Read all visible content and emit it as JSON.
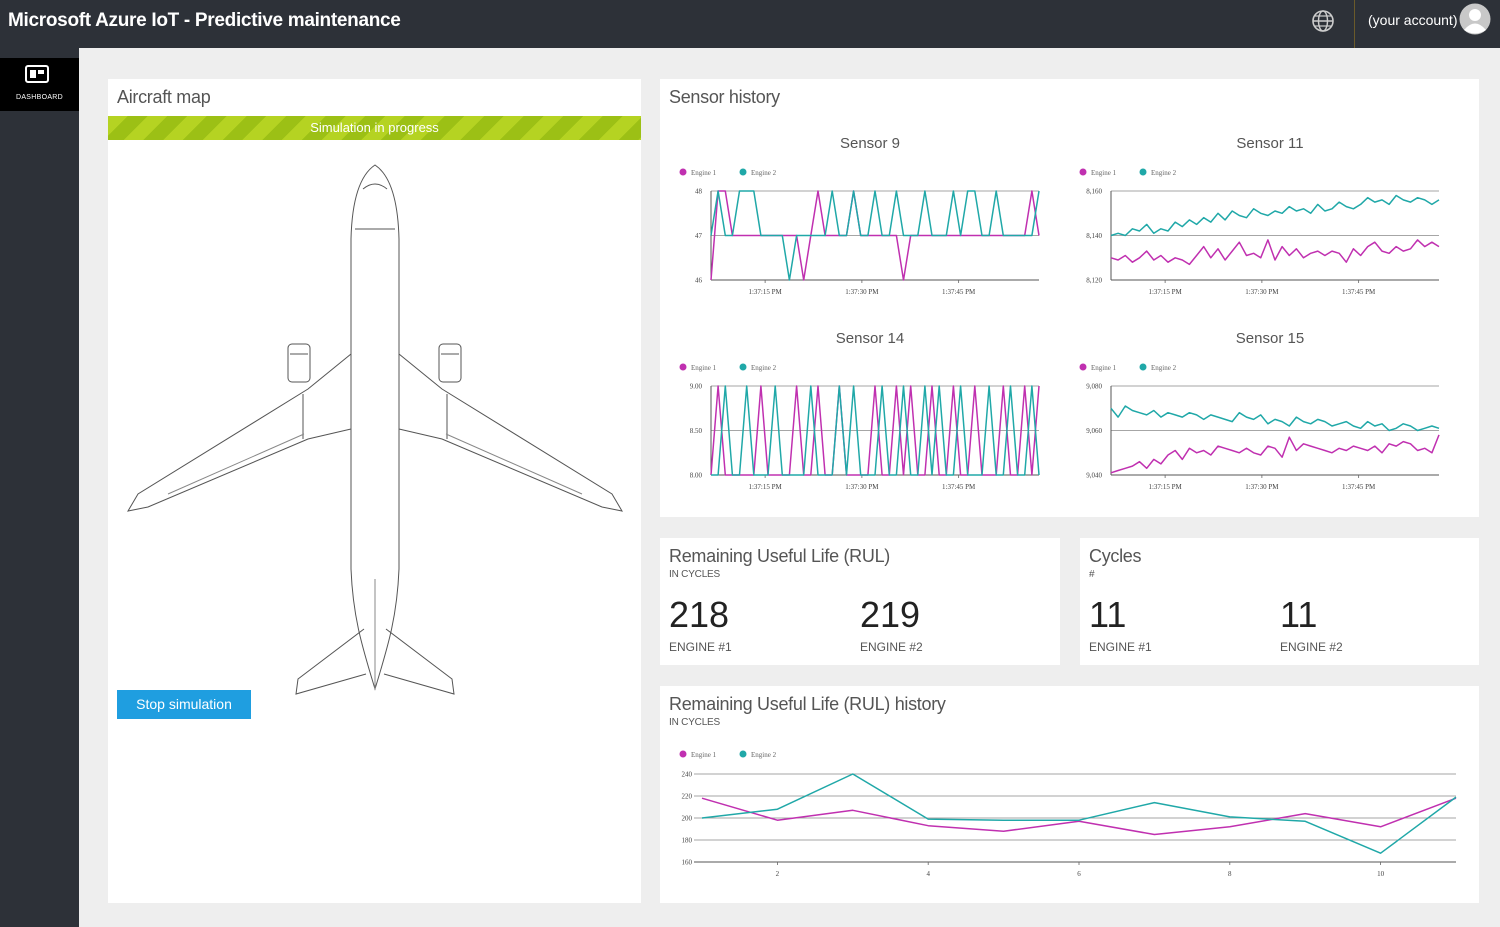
{
  "header": {
    "title": "Microsoft Azure IoT - Predictive maintenance",
    "account": "(your account)",
    "globe_icon": "globe-icon",
    "avatar_icon": "user-avatar-icon"
  },
  "nav": {
    "items": [
      {
        "label": "DASHBOARD",
        "icon": "dashboard-icon"
      }
    ]
  },
  "aircraft_map": {
    "title": "Aircraft map",
    "banner": "Simulation in progress",
    "stop_button": "Stop simulation"
  },
  "sensor_history": {
    "title": "Sensor history"
  },
  "rul": {
    "title": "Remaining Useful Life (RUL)",
    "caption": "IN CYCLES",
    "engines": [
      {
        "value": "218",
        "label": "ENGINE #1"
      },
      {
        "value": "219",
        "label": "ENGINE #2"
      }
    ]
  },
  "cycles": {
    "title": "Cycles",
    "caption": "#",
    "engines": [
      {
        "value": "11",
        "label": "ENGINE #1"
      },
      {
        "value": "11",
        "label": "ENGINE #2"
      }
    ]
  },
  "rul_history": {
    "title": "Remaining Useful Life (RUL) history",
    "caption": "IN CYCLES"
  },
  "colors": {
    "engine1": "#c030b0",
    "engine2": "#20a8a8",
    "accent": "#1f9ee0",
    "banner": "#b5d322"
  },
  "chart_data": [
    {
      "title": "Sensor 9",
      "type": "line",
      "ylim": [
        46,
        48
      ],
      "yticks": [
        "48",
        "47",
        "46"
      ],
      "xticks": [
        "1:37:15 PM",
        "1:37:30 PM",
        "1:37:45 PM"
      ],
      "series": [
        {
          "name": "Engine 1",
          "values": [
            46,
            48,
            48,
            47,
            47,
            47,
            47,
            47,
            47,
            47,
            47,
            47,
            47,
            46,
            47,
            48,
            47,
            47,
            47,
            47,
            48,
            47,
            47,
            47,
            47,
            47,
            47,
            46,
            47,
            47,
            47,
            47,
            47,
            47,
            47,
            47,
            47,
            47,
            47,
            47,
            47,
            47,
            47,
            47,
            47,
            48,
            47
          ]
        },
        {
          "name": "Engine 2",
          "values": [
            47,
            48,
            47,
            47,
            48,
            48,
            48,
            47,
            47,
            47,
            47,
            46,
            47,
            47,
            47,
            47,
            47,
            48,
            47,
            47,
            48,
            47,
            47,
            48,
            47,
            47,
            48,
            47,
            47,
            47,
            48,
            47,
            47,
            47,
            48,
            47,
            48,
            48,
            47,
            47,
            48,
            47,
            47,
            47,
            47,
            47,
            48
          ]
        }
      ]
    },
    {
      "title": "Sensor 11",
      "type": "line",
      "ylim": [
        8120,
        8160
      ],
      "yticks": [
        "8,160",
        "8,140",
        "8,120"
      ],
      "xticks": [
        "1:37:15 PM",
        "1:37:30 PM",
        "1:37:45 PM"
      ],
      "series": [
        {
          "name": "Engine 1",
          "values": [
            8130,
            8129,
            8131,
            8128,
            8130,
            8133,
            8129,
            8131,
            8128,
            8130,
            8129,
            8127,
            8131,
            8135,
            8130,
            8134,
            8129,
            8133,
            8137,
            8131,
            8132,
            8130,
            8138,
            8129,
            8135,
            8131,
            8134,
            8130,
            8132,
            8133,
            8131,
            8133,
            8132,
            8128,
            8134,
            8131,
            8135,
            8137,
            8133,
            8132,
            8135,
            8133,
            8134,
            8138,
            8135,
            8137,
            8135
          ]
        },
        {
          "name": "Engine 2",
          "values": [
            8140,
            8141,
            8140,
            8143,
            8142,
            8145,
            8141,
            8143,
            8142,
            8146,
            8144,
            8147,
            8145,
            8148,
            8146,
            8150,
            8147,
            8151,
            8149,
            8148,
            8152,
            8150,
            8149,
            8151,
            8150,
            8153,
            8151,
            8152,
            8150,
            8154,
            8151,
            8152,
            8155,
            8153,
            8152,
            8154,
            8157,
            8155,
            8156,
            8154,
            8158,
            8156,
            8155,
            8157,
            8156,
            8154,
            8156
          ]
        }
      ]
    },
    {
      "title": "Sensor 14",
      "type": "line",
      "ylim": [
        8,
        9
      ],
      "yticks": [
        "9.00",
        "8.50",
        "8.00"
      ],
      "xticks": [
        "1:37:15 PM",
        "1:37:30 PM",
        "1:37:45 PM"
      ],
      "series": [
        {
          "name": "Engine 1",
          "values": [
            8,
            9,
            8,
            8,
            8,
            8,
            8,
            9,
            8,
            8,
            8,
            8,
            9,
            8,
            8,
            9,
            8,
            8,
            9,
            8,
            8,
            8,
            8,
            9,
            8,
            8,
            9,
            8,
            9,
            8,
            8,
            9,
            8,
            8,
            9,
            8,
            8,
            9,
            8,
            8,
            8,
            9,
            8,
            8,
            9,
            8,
            9
          ]
        },
        {
          "name": "Engine 2",
          "values": [
            8,
            8,
            9,
            8,
            8,
            9,
            8,
            8,
            8,
            9,
            8,
            8,
            8,
            8,
            9,
            8,
            8,
            8,
            9,
            8,
            9,
            8,
            8,
            8,
            9,
            8,
            8,
            9,
            8,
            8,
            9,
            8,
            9,
            8,
            8,
            9,
            8,
            8,
            8,
            9,
            8,
            8,
            9,
            8,
            8,
            9,
            8
          ]
        }
      ]
    },
    {
      "title": "Sensor 15",
      "type": "line",
      "ylim": [
        9040,
        9080
      ],
      "yticks": [
        "9,080",
        "9,060",
        "9,040"
      ],
      "xticks": [
        "1:37:15 PM",
        "1:37:30 PM",
        "1:37:45 PM"
      ],
      "series": [
        {
          "name": "Engine 1",
          "values": [
            9041,
            9042,
            9043,
            9044,
            9046,
            9043,
            9047,
            9045,
            9049,
            9051,
            9047,
            9052,
            9050,
            9051,
            9049,
            9053,
            9052,
            9051,
            9050,
            9052,
            9050,
            9049,
            9053,
            9052,
            9048,
            9057,
            9051,
            9054,
            9053,
            9052,
            9051,
            9050,
            9052,
            9051,
            9053,
            9052,
            9051,
            9053,
            9050,
            9054,
            9053,
            9055,
            9054,
            9051,
            9052,
            9050,
            9058
          ]
        },
        {
          "name": "Engine 2",
          "values": [
            9070,
            9066,
            9071,
            9069,
            9068,
            9067,
            9069,
            9066,
            9068,
            9067,
            9066,
            9068,
            9067,
            9065,
            9067,
            9066,
            9065,
            9064,
            9068,
            9066,
            9065,
            9067,
            9063,
            9065,
            9064,
            9062,
            9066,
            9064,
            9063,
            9065,
            9064,
            9062,
            9063,
            9064,
            9062,
            9061,
            9064,
            9062,
            9063,
            9060,
            9061,
            9063,
            9062,
            9060,
            9061,
            9062,
            9061
          ]
        }
      ]
    },
    {
      "title": "Remaining Useful Life (RUL) history",
      "type": "line",
      "ylim": [
        160,
        240
      ],
      "yticks": [
        "240",
        "220",
        "200",
        "180",
        "160"
      ],
      "xticks": [
        "2",
        "4",
        "6",
        "8",
        "10"
      ],
      "x": [
        1,
        2,
        3,
        4,
        5,
        6,
        7,
        8,
        9,
        10,
        11
      ],
      "series": [
        {
          "name": "Engine 1",
          "values": [
            218,
            198,
            207,
            193,
            188,
            197,
            185,
            192,
            204,
            192,
            218
          ]
        },
        {
          "name": "Engine 2",
          "values": [
            200,
            208,
            240,
            199,
            198,
            198,
            214,
            201,
            197,
            168,
            219
          ]
        }
      ]
    }
  ]
}
